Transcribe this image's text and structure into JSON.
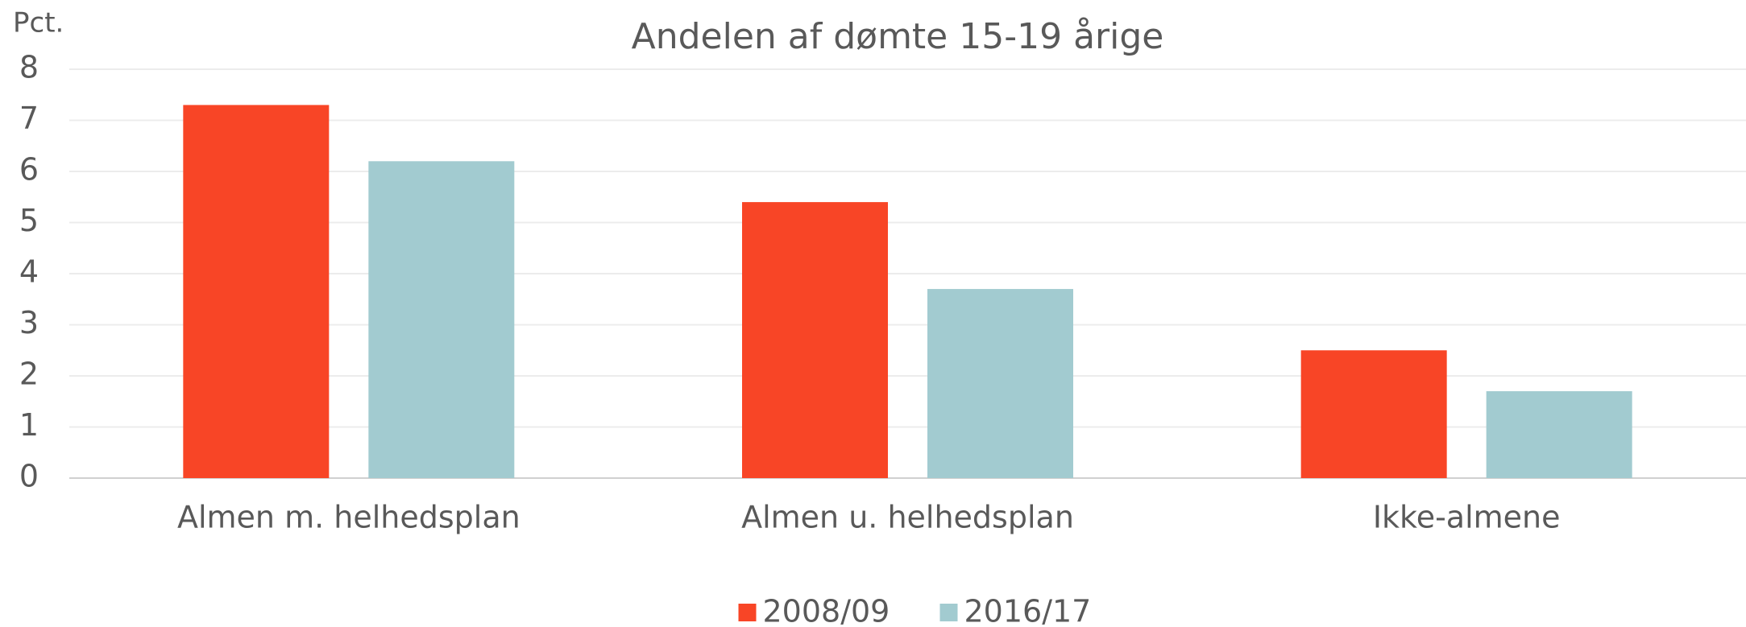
{
  "chart_data": {
    "type": "bar",
    "title": "Andelen af dømte 15-19 årige",
    "y_label": "Pct.",
    "categories": [
      "Almen m. helhedsplan",
      "Almen u. helhedsplan",
      "Ikke-almene"
    ],
    "series": [
      {
        "name": "2008/09",
        "color": "#f84526",
        "values": [
          7.3,
          5.4,
          2.5
        ]
      },
      {
        "name": "2016/17",
        "color": "#a2cbd0",
        "values": [
          6.2,
          3.7,
          1.7
        ]
      }
    ],
    "ylim": [
      0,
      8
    ],
    "yticks": [
      0,
      1,
      2,
      3,
      4,
      5,
      6,
      7,
      8
    ],
    "grid": true,
    "legend": "bottom"
  }
}
